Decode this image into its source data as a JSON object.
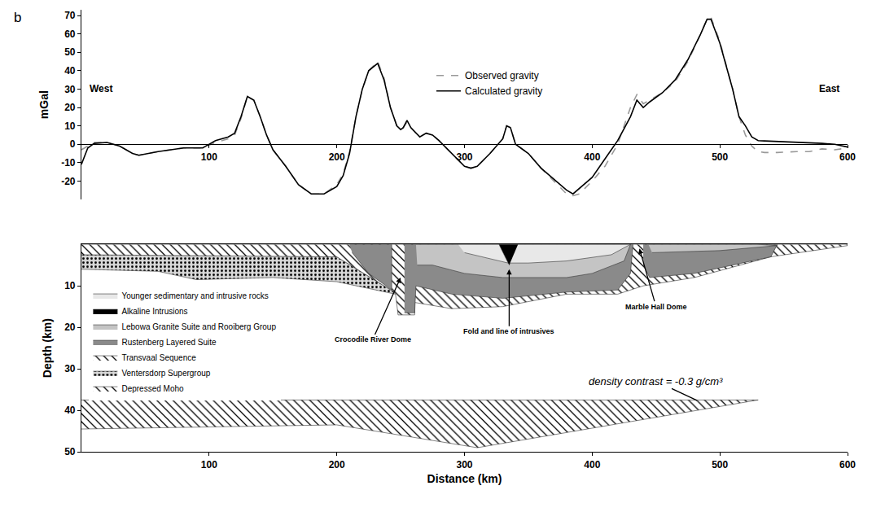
{
  "chart_data": [
    {
      "type": "line",
      "panel_label": "b",
      "ylabel": "mGal",
      "x": [
        0,
        5,
        10,
        20,
        30,
        40,
        45,
        60,
        80,
        95,
        105,
        115,
        120,
        125,
        130,
        135,
        140,
        145,
        150,
        160,
        170,
        180,
        190,
        200,
        205,
        210,
        215,
        220,
        225,
        232,
        237,
        242,
        247,
        250,
        252,
        255,
        258,
        262,
        265,
        270,
        275,
        280,
        290,
        300,
        305,
        310,
        320,
        330,
        333,
        336,
        340,
        350,
        360,
        370,
        380,
        385,
        390,
        400,
        410,
        420,
        430,
        435,
        440,
        445,
        455,
        465,
        475,
        485,
        490,
        493,
        500,
        510,
        515,
        520,
        525,
        530,
        535,
        545,
        560,
        570,
        580,
        590,
        600
      ],
      "series": [
        {
          "name": "Observed gravity",
          "color": "#999999",
          "line_style": "dashed",
          "values": [
            -3,
            -1,
            1,
            1,
            -1,
            -5,
            -6,
            -4,
            -2,
            -2,
            1,
            3,
            5,
            14,
            26,
            24,
            15,
            5,
            -3,
            -12,
            -22,
            -27,
            -27,
            -22,
            -16,
            -4,
            15,
            30,
            40,
            45,
            36,
            20,
            10,
            8,
            9,
            12,
            9,
            6,
            4,
            6,
            5,
            2,
            -5,
            -12,
            -13,
            -12,
            -5,
            3,
            10,
            9,
            0,
            -5,
            -13,
            -20,
            -27,
            -28,
            -27,
            -20,
            -12,
            0,
            20,
            27,
            22,
            24,
            28,
            34,
            45,
            60,
            68,
            69,
            56,
            30,
            15,
            5,
            -1,
            -4,
            -4.5,
            -4.5,
            -4,
            -4,
            -2.5,
            -3,
            -2
          ]
        },
        {
          "name": "Calculated gravity",
          "color": "#000000",
          "line_style": "solid",
          "values": [
            -11,
            -2,
            0.5,
            1,
            -1,
            -5,
            -6,
            -4,
            -2,
            -2,
            2,
            4,
            6,
            15,
            26,
            24,
            15,
            5,
            -3,
            -12,
            -22,
            -27,
            -27,
            -23,
            -17,
            -5,
            15,
            30,
            40,
            44,
            35,
            20,
            10,
            8,
            9,
            13,
            9,
            6,
            4,
            6,
            5,
            2,
            -5,
            -12,
            -13,
            -12,
            -5,
            3,
            10,
            9,
            0,
            -5,
            -13,
            -19,
            -25,
            -27,
            -24,
            -18,
            -8,
            2,
            15,
            24,
            20,
            23,
            28,
            35,
            46,
            60,
            68,
            68,
            55,
            30,
            15,
            10,
            4,
            2,
            1.8,
            1.5,
            1.2,
            1,
            0.5,
            0,
            -1.5
          ]
        }
      ],
      "xlim": [
        0,
        600
      ],
      "xticks": [
        100,
        200,
        300,
        400,
        500,
        600
      ],
      "ylim": [
        -30,
        73
      ],
      "yticks": [
        -20,
        -10,
        0,
        10,
        20,
        30,
        40,
        50,
        60,
        70
      ],
      "legend": "top",
      "annotations": [
        "West",
        "East"
      ]
    },
    {
      "type": "area",
      "xlabel": "Distance (km)",
      "ylabel": "Depth (km)",
      "series": [
        {
          "name": "Younger sedimentary and intrusive rocks",
          "color": "#e8e8e8",
          "marker": "solid",
          "x": [
            295,
            327,
            334.2,
            320,
            300,
            null,
            342,
            430,
            415,
            380,
            350,
            335.8
          ],
          "values": [
            0,
            0,
            4.5,
            3.5,
            2,
            null,
            0,
            0,
            2.5,
            4,
            4.5,
            4.5
          ]
        },
        {
          "name": "Alkaline Intrusions",
          "color": "#000000",
          "marker": "solid",
          "x": [
            327,
            342,
            335
          ],
          "values": [
            0,
            0,
            5
          ]
        },
        {
          "name": "Lebowa Granite Suite and Rooiberg Group",
          "color": "#c4c4c4",
          "marker": "solid",
          "x": [
            262,
            430,
            425,
            400,
            380,
            330,
            300,
            275,
            263,
            null,
            444,
            530,
            545,
            500,
            447
          ],
          "values": [
            0,
            0,
            4,
            7,
            8,
            8,
            7,
            5,
            5,
            null,
            0,
            0,
            0.3,
            1.5,
            2
          ]
        },
        {
          "name": "Rustenberg Layered Suite",
          "color": "#8a8a8a",
          "marker": "solid",
          "x": [
            210,
            243,
            243,
            225,
            212,
            null,
            253,
            432,
            430,
            420,
            380,
            330,
            290,
            262,
            261,
            253,
            null,
            440,
            545,
            540,
            480,
            445,
            440
          ],
          "values": [
            0,
            0,
            11,
            7,
            2,
            null,
            0,
            0,
            7,
            11,
            11.5,
            13,
            12,
            10,
            16.5,
            16.5,
            null,
            0,
            0,
            3,
            7,
            8,
            5
          ]
        },
        {
          "name": "Transvaal Sequence",
          "color": "#ffffff",
          "marker": "hatch",
          "x": [
            0,
            600,
            600,
            540,
            480,
            440,
            420,
            380,
            330,
            290,
            261,
            261,
            248,
            246,
            245,
            200,
            0
          ],
          "values": [
            0,
            0,
            0.3,
            3,
            8,
            10,
            12,
            12,
            15,
            15.5,
            14,
            17,
            17,
            12,
            11.5,
            3,
            2.5
          ]
        },
        {
          "name": "Ventersdorp Supergroup",
          "color": "#d9d9d9",
          "marker": "dots",
          "x": [
            0,
            200,
            245,
            246,
            200,
            150,
            90,
            60,
            0
          ],
          "values": [
            2.5,
            3,
            11.5,
            12,
            9,
            8,
            8.5,
            6.5,
            6
          ]
        },
        {
          "name": "Depressed Moho",
          "color": "#ffffff",
          "marker": "hatch",
          "x": [
            0,
            530,
            310,
            200,
            0
          ],
          "values": [
            37.5,
            37.5,
            49,
            43.5,
            44.5
          ]
        }
      ],
      "xlim": [
        0,
        600
      ],
      "xticks": [
        100,
        200,
        300,
        400,
        500,
        600
      ],
      "ylim": [
        50,
        0
      ],
      "yticks": [
        10,
        20,
        30,
        40,
        50
      ],
      "legend": "top left",
      "annotations": [
        "Crocodile River Dome",
        "Fold and line of intrusives",
        "Marble Hall Dome",
        "density contrast = -0.3 g/cm³"
      ]
    }
  ]
}
